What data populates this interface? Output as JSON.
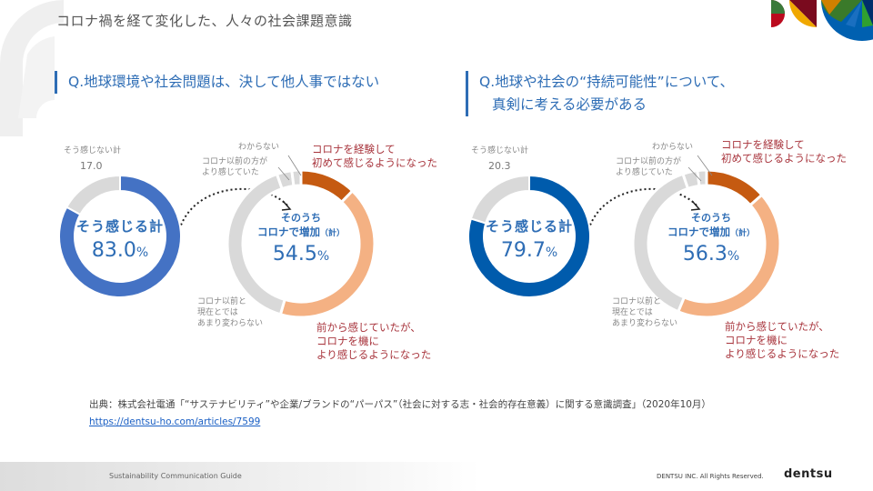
{
  "header": {
    "title": "コロナ禍を経て変化した、人々の社会課題意識"
  },
  "panels": [
    {
      "question_line1": "Q.地球環境や社会問題は、決して他人事ではない",
      "question_line2": "",
      "not_feel_label": "そう感じない計",
      "not_feel_value": "17.0",
      "feel_label": "そう感じる計",
      "feel_value": "83.0",
      "pct": "%",
      "sub_label1": "そのうち",
      "sub_label2": "コロナで増加",
      "sub_label2_suffix": "（計）",
      "sub_value": "54.5",
      "label_unknown": "わからない",
      "label_before": "コロナ以前の方が\nより感じていた",
      "label_same": "コロナ以前と\n現在とでは\nあまり変わらない",
      "label_first": "コロナを経験して\n初めて感じるようになった",
      "label_more": "前から感じていたが、\nコロナを機に\nより感じるようになった"
    },
    {
      "question_line1": "Q.地球や社会の“持続可能性”について、",
      "question_line2": "真剣に考える必要がある",
      "not_feel_label": "そう感じない計",
      "not_feel_value": "20.3",
      "feel_label": "そう感じる計",
      "feel_value": "79.7",
      "pct": "%",
      "sub_label1": "そのうち",
      "sub_label2": "コロナで増加",
      "sub_label2_suffix": "（計）",
      "sub_value": "56.3",
      "label_unknown": "わからない",
      "label_before": "コロナ以前の方が\nより感じていた",
      "label_same": "コロナ以前と\n現在とでは\nあまり変わらない",
      "label_first": "コロナを経験して\n初めて感じるようになった",
      "label_more": "前から感じていたが、\nコロナを機に\nより感じるようになった"
    }
  ],
  "chart_data": [
    {
      "type": "pie",
      "title": "Q.地球環境や社会問題は、決して他人事ではない",
      "categories": [
        "そう感じる計",
        "そう感じない計"
      ],
      "values": [
        83.0,
        17.0
      ],
      "colors": [
        "#4472c4",
        "#d9d9d9"
      ]
    },
    {
      "type": "pie",
      "title": "そのうちコロナで増加（計） 54.5%",
      "categories": [
        "コロナを経験して初めて感じるようになった",
        "前から感じていたが、コロナを機により感じるようになった",
        "コロナ以前と現在とではあまり変わらない",
        "コロナ以前の方がより感じていた",
        "わからない"
      ],
      "values": [
        12.3,
        42.2,
        40.2,
        3.3,
        2.0
      ],
      "colors": [
        "#c55a11",
        "#f4b183",
        "#d9d9d9",
        "#d9d9d9",
        "#d9d9d9"
      ]
    },
    {
      "type": "pie",
      "title": "Q.地球や社会の“持続可能性”について、真剣に考える必要がある",
      "categories": [
        "そう感じる計",
        "そう感じない計"
      ],
      "values": [
        79.7,
        20.3
      ],
      "colors": [
        "#005bac",
        "#d9d9d9"
      ]
    },
    {
      "type": "pie",
      "title": "そのうちコロナで増加（計） 56.3%",
      "categories": [
        "コロナを経験して初めて感じるようになった",
        "前から感じていたが、コロナを機により感じるようになった",
        "コロナ以前と現在とではあまり変わらない",
        "コロナ以前の方がより感じていた",
        "わからない"
      ],
      "values": [
        13.5,
        42.8,
        38.5,
        3.2,
        2.0
      ],
      "colors": [
        "#c55a11",
        "#f4b183",
        "#d9d9d9",
        "#d9d9d9",
        "#d9d9d9"
      ]
    }
  ],
  "source": {
    "text": "出典：株式会社電通「“サステナビリティ”や企業/ブランドの“パーパス”（社会に対する志・社会的存在意義）に関する意識調査」（2020年10月）",
    "link": "https://dentsu-ho.com/articles/7599"
  },
  "footer": {
    "guide": "Sustainability Communication Guide",
    "rights": "DENTSU INC. All Rights Reserved.",
    "brand": "dentsu"
  }
}
